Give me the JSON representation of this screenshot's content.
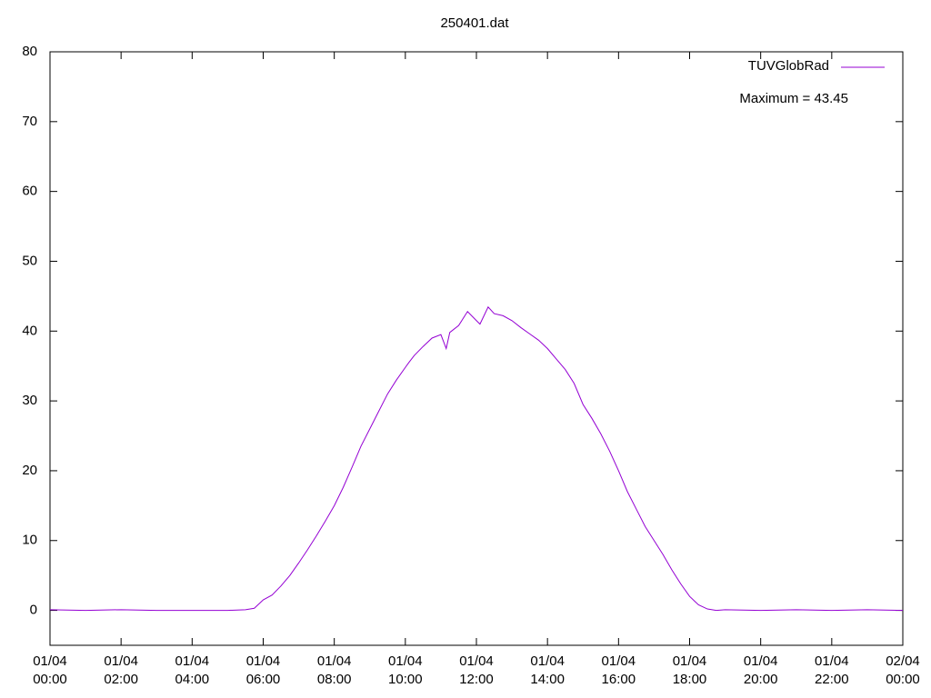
{
  "chart_data": {
    "type": "line",
    "title": "250401.dat",
    "annotation": "Maximum = 43.45",
    "x": [
      0,
      1,
      2,
      3,
      4,
      5,
      5.5,
      5.75,
      6,
      6.25,
      6.5,
      6.75,
      7,
      7.25,
      7.5,
      7.75,
      8,
      8.25,
      8.5,
      8.75,
      9,
      9.25,
      9.5,
      9.75,
      10,
      10.1,
      10.25,
      10.5,
      10.75,
      11,
      11.15,
      11.25,
      11.5,
      11.75,
      12,
      12.1,
      12.33,
      12.5,
      12.75,
      13,
      13.25,
      13.5,
      13.75,
      14,
      14.25,
      14.5,
      14.75,
      15,
      15.25,
      15.5,
      15.75,
      16,
      16.25,
      16.5,
      16.75,
      17,
      17.25,
      17.5,
      17.75,
      18,
      18.25,
      18.5,
      18.75,
      19,
      20,
      21,
      22,
      23,
      24
    ],
    "series": [
      {
        "name": "TUVGlobRad",
        "color": "#9400d3",
        "values": [
          0.1,
          0,
          0.1,
          0,
          0,
          0,
          0.1,
          0.3,
          1.5,
          2.2,
          3.5,
          5,
          6.8,
          8.7,
          10.7,
          12.8,
          15,
          17.6,
          20.5,
          23.5,
          26,
          28.5,
          31,
          33,
          34.8,
          35.5,
          36.5,
          37.8,
          39,
          39.5,
          37.5,
          39.8,
          40.8,
          42.8,
          41.5,
          41,
          43.45,
          42.5,
          42.2,
          41.5,
          40.5,
          39.6,
          38.7,
          37.5,
          36,
          34.5,
          32.5,
          29.5,
          27.5,
          25.3,
          22.8,
          20,
          17,
          14.5,
          12,
          10,
          8,
          5.8,
          3.8,
          2,
          0.8,
          0.2,
          0,
          0.1,
          0,
          0.1,
          0,
          0.1,
          0
        ]
      }
    ],
    "xlim": [
      0,
      24
    ],
    "xticks": [
      {
        "value": 0,
        "label": "01/04\n00:00"
      },
      {
        "value": 2,
        "label": "01/04\n02:00"
      },
      {
        "value": 4,
        "label": "01/04\n04:00"
      },
      {
        "value": 6,
        "label": "01/04\n06:00"
      },
      {
        "value": 8,
        "label": "01/04\n08:00"
      },
      {
        "value": 10,
        "label": "01/04\n10:00"
      },
      {
        "value": 12,
        "label": "01/04\n12:00"
      },
      {
        "value": 14,
        "label": "01/04\n14:00"
      },
      {
        "value": 16,
        "label": "01/04\n16:00"
      },
      {
        "value": 18,
        "label": "01/04\n18:00"
      },
      {
        "value": 20,
        "label": "01/04\n20:00"
      },
      {
        "value": 22,
        "label": "01/04\n22:00"
      },
      {
        "value": 24,
        "label": "02/04\n00:00"
      }
    ],
    "ylim": [
      -5,
      80
    ],
    "yticks": [
      0,
      10,
      20,
      30,
      40,
      50,
      60,
      70,
      80
    ],
    "grid": false
  }
}
